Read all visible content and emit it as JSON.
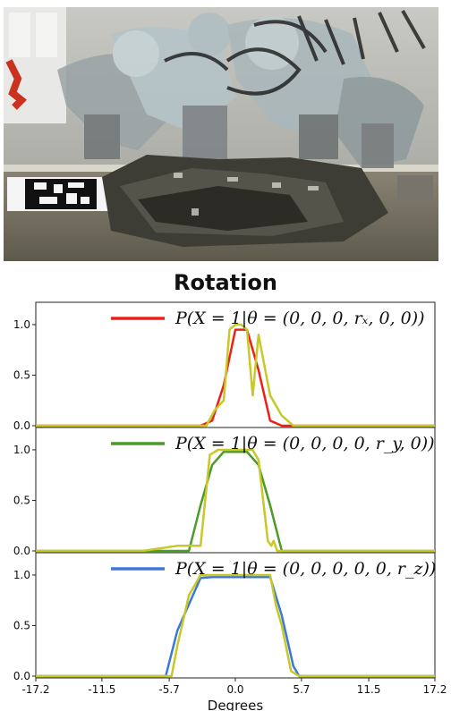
{
  "photo": {
    "caption": "",
    "marker_icon": "fiducial-marker-icon"
  },
  "chart_data": {
    "type": "line",
    "title": "Rotation",
    "xlabel": "Degrees",
    "xlim": [
      -17.2,
      17.2
    ],
    "x_ticks": [
      "-17.2",
      "-11.5",
      "-5.7",
      "0.0",
      "5.7",
      "11.5",
      "17.2"
    ],
    "y_ticks": [
      "0.0",
      "0.5",
      "1.0"
    ],
    "ylim": [
      0,
      1.15
    ],
    "grid": false,
    "legend_position": "top-right",
    "reference_color": "#c8c828",
    "panels": [
      {
        "legend": "P(X = 1|θ = (0, 0, 0, rₓ, 0, 0))",
        "color": "#e8221b",
        "series": {
          "x": [
            -17.2,
            -3.0,
            -2.0,
            -1.0,
            0.0,
            1.0,
            2.0,
            3.0,
            4.0,
            17.2
          ],
          "y": [
            0.0,
            0.0,
            0.05,
            0.4,
            0.95,
            0.95,
            0.55,
            0.05,
            0.0,
            0.0
          ]
        },
        "reference": {
          "x": [
            -17.2,
            -2.5,
            -1.8,
            -1.0,
            -0.5,
            0.0,
            0.5,
            1.0,
            1.5,
            2.0,
            3.0,
            4.0,
            5.0,
            17.2
          ],
          "y": [
            0.0,
            0.0,
            0.15,
            0.25,
            0.95,
            1.0,
            1.0,
            0.95,
            0.3,
            0.9,
            0.3,
            0.1,
            0.0,
            0.0
          ]
        }
      },
      {
        "legend": "P(X = 1|θ = (0, 0, 0, 0, r_y, 0))",
        "color": "#4c9a28",
        "series": {
          "x": [
            -17.2,
            -4.0,
            -3.0,
            -2.0,
            -1.0,
            0.0,
            1.0,
            2.0,
            3.0,
            4.0,
            17.2
          ],
          "y": [
            0.0,
            0.0,
            0.45,
            0.85,
            0.98,
            0.98,
            0.98,
            0.85,
            0.45,
            0.0,
            0.0
          ]
        },
        "reference": {
          "x": [
            -17.2,
            -8.0,
            -5.0,
            -3.5,
            -3.0,
            -2.2,
            -1.5,
            0.0,
            1.5,
            2.0,
            2.8,
            3.1,
            3.3,
            3.6,
            4.5,
            17.2
          ],
          "y": [
            0.0,
            0.0,
            0.05,
            0.05,
            0.05,
            0.95,
            1.0,
            1.0,
            1.0,
            0.9,
            0.1,
            0.05,
            0.1,
            0.0,
            0.0,
            0.0
          ]
        }
      },
      {
        "legend": "P(X = 1|θ = (0, 0, 0, 0, 0, r_z))",
        "color": "#3c78d8",
        "series": {
          "x": [
            -17.2,
            -6.0,
            -5.0,
            -3.0,
            -2.0,
            0.0,
            2.0,
            3.0,
            4.0,
            5.0,
            5.5,
            17.2
          ],
          "y": [
            0.0,
            0.0,
            0.45,
            0.97,
            0.98,
            0.98,
            0.98,
            0.98,
            0.6,
            0.1,
            0.0,
            0.0
          ]
        },
        "reference": {
          "x": [
            -17.2,
            -10.0,
            -5.5,
            -5.0,
            -4.0,
            -3.0,
            0.0,
            3.0,
            3.5,
            4.0,
            4.8,
            5.5,
            9.0,
            17.2
          ],
          "y": [
            0.0,
            0.0,
            0.0,
            0.3,
            0.8,
            1.0,
            1.0,
            1.0,
            0.7,
            0.5,
            0.05,
            0.0,
            0.0,
            0.0
          ]
        }
      }
    ]
  }
}
